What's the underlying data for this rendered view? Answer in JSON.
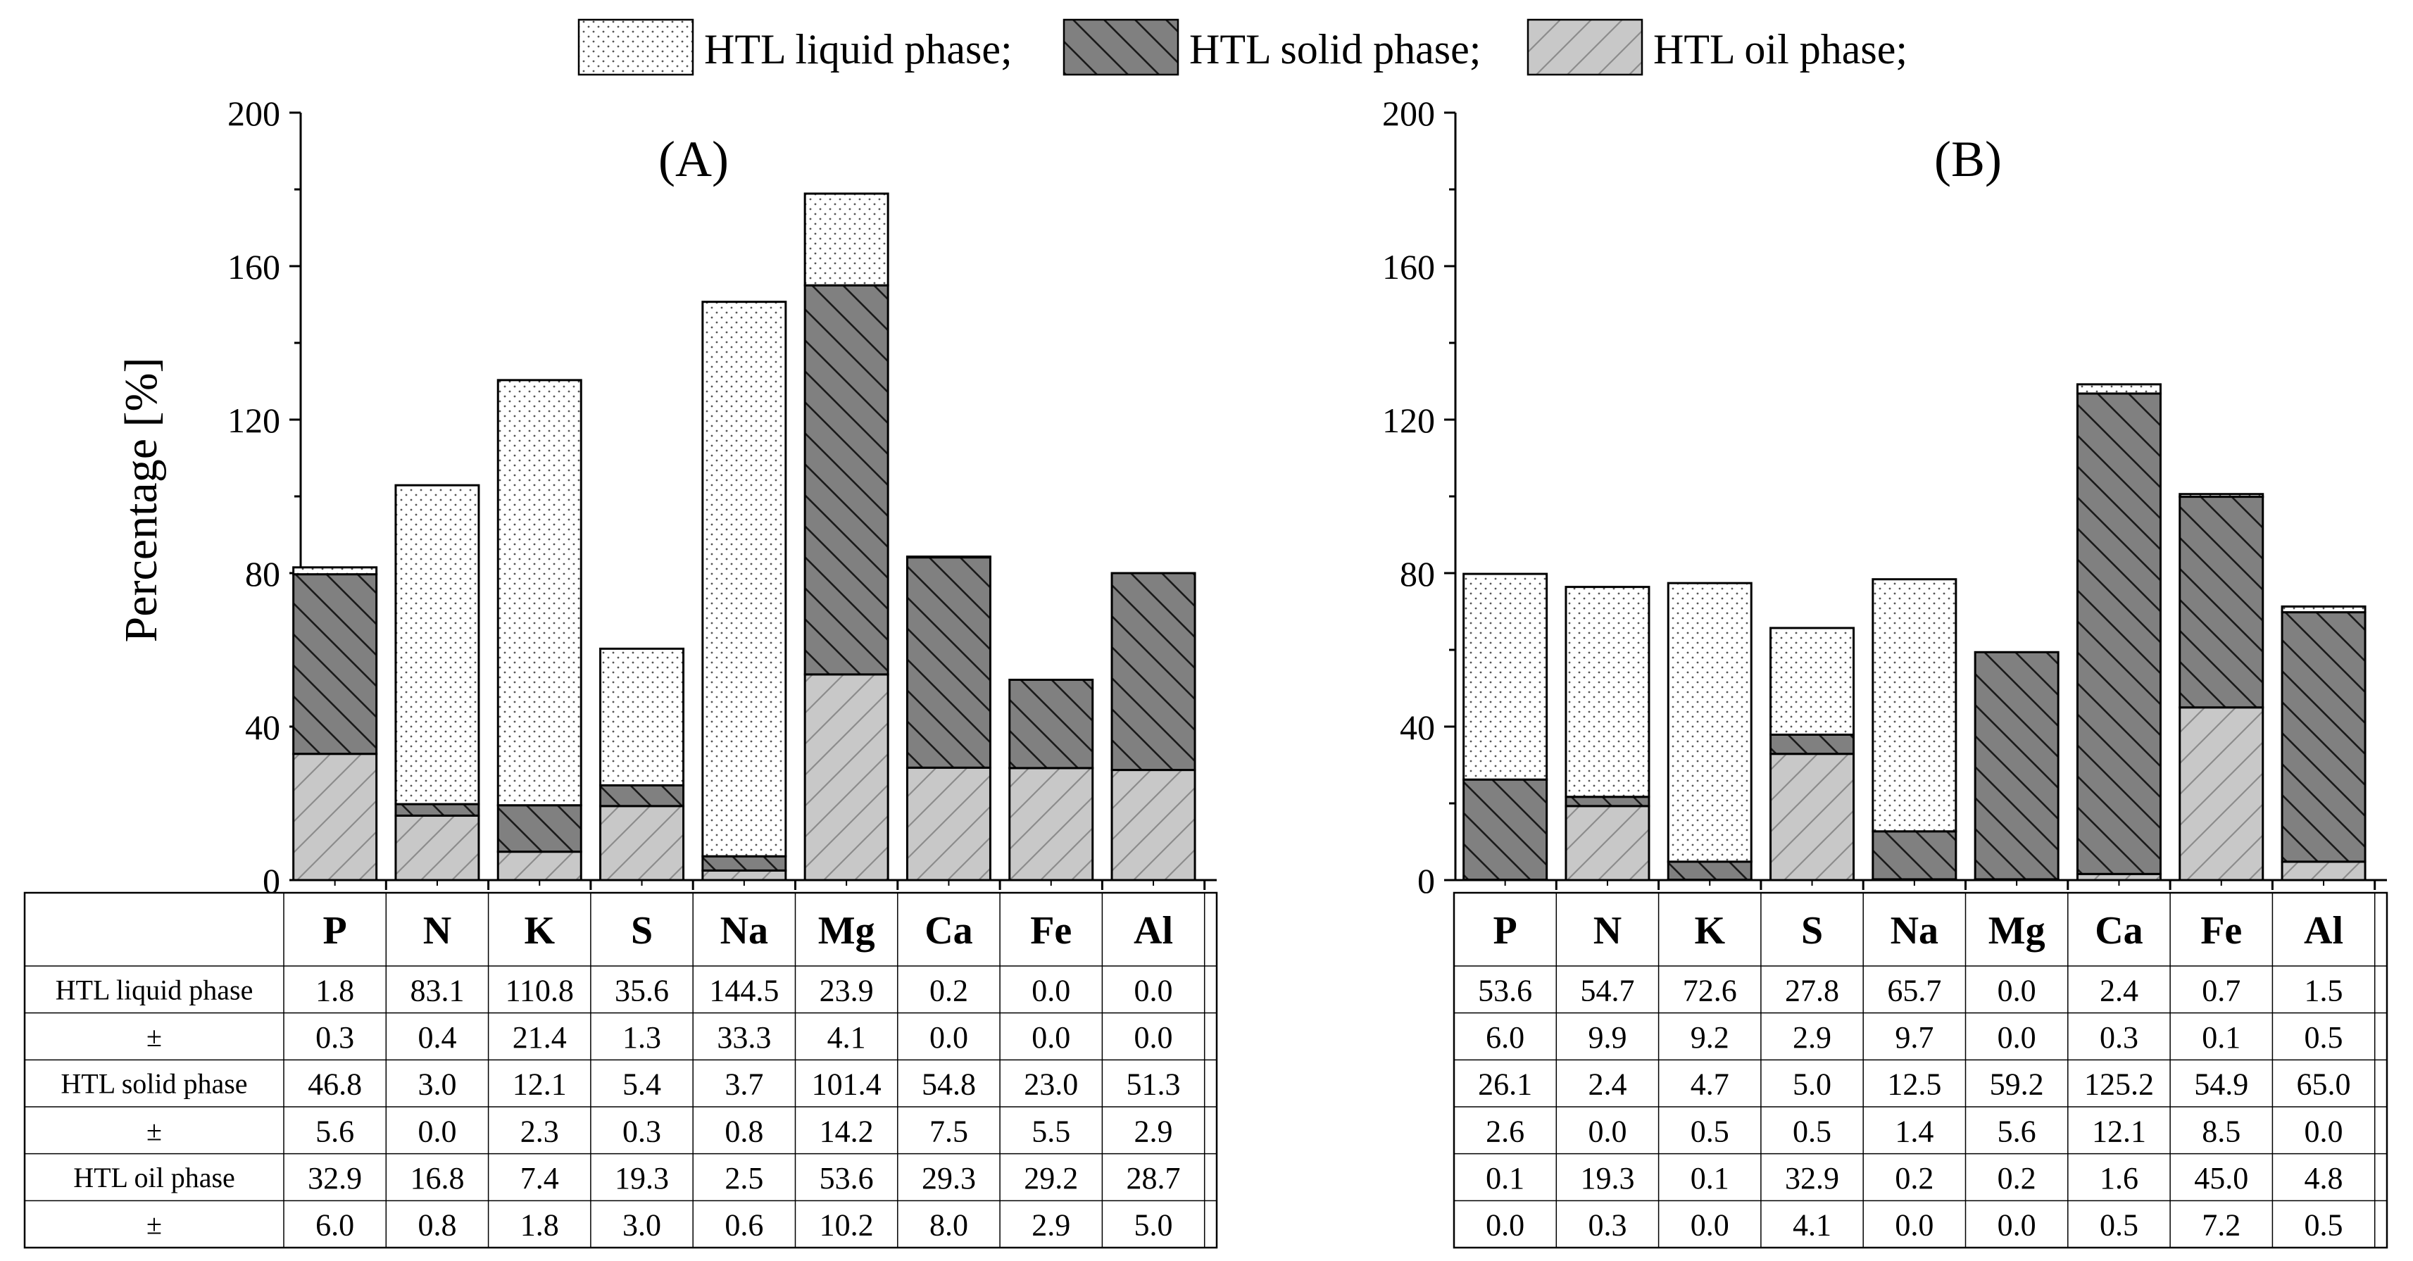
{
  "legend": [
    {
      "key": "liquid",
      "label": "HTL liquid phase;"
    },
    {
      "key": "solid",
      "label": "HTL solid phase;"
    },
    {
      "key": "oil",
      "label": "HTL oil phase;"
    }
  ],
  "colors": {
    "liquid": "#ffffff",
    "solid": "#808080",
    "oil": "#c8c8c8",
    "stroke": "#000000"
  },
  "table_row_labels": [
    "HTL liquid phase",
    "±",
    "HTL solid  phase",
    "±",
    "HTL oil phase",
    "±"
  ],
  "chart_data": [
    {
      "type": "bar",
      "stacked": true,
      "title": "(A)",
      "ylabel": "Percentage [%]",
      "ylim": [
        0,
        200
      ],
      "yticks": [
        "0",
        "40",
        "80",
        "120",
        "160",
        "200"
      ],
      "categories": [
        "P",
        "N",
        "K",
        "S",
        "Na",
        "Mg",
        "Ca",
        "Fe",
        "Al"
      ],
      "series": [
        {
          "name": "HTL oil phase",
          "key": "oil",
          "values": [
            32.9,
            16.8,
            7.4,
            19.3,
            2.5,
            53.6,
            29.3,
            29.2,
            28.7
          ],
          "values_text": [
            "32.9",
            "16.8",
            "7.4",
            "19.3",
            "2.5",
            "53.6",
            "29.3",
            "29.2",
            "28.7"
          ],
          "errors_text": [
            "6.0",
            "0.8",
            "1.8",
            "3.0",
            "0.6",
            "10.2",
            "8.0",
            "2.9",
            "5.0"
          ]
        },
        {
          "name": "HTL solid phase",
          "key": "solid",
          "values": [
            46.8,
            3.0,
            12.1,
            5.4,
            3.7,
            101.4,
            54.8,
            23.0,
            51.3
          ],
          "values_text": [
            "46.8",
            "3.0",
            "12.1",
            "5.4",
            "3.7",
            "101.4",
            "54.8",
            "23.0",
            "51.3"
          ],
          "errors_text": [
            "5.6",
            "0.0",
            "2.3",
            "0.3",
            "0.8",
            "14.2",
            "7.5",
            "5.5",
            "2.9"
          ]
        },
        {
          "name": "HTL liquid phase",
          "key": "liquid",
          "values": [
            1.8,
            83.1,
            110.8,
            35.6,
            144.5,
            23.9,
            0.2,
            0.0,
            0.0
          ],
          "values_text": [
            "1.8",
            "83.1",
            "110.8",
            "35.6",
            "144.5",
            "23.9",
            "0.2",
            "0.0",
            "0.0"
          ],
          "errors_text": [
            "0.3",
            "0.4",
            "21.4",
            "1.3",
            "33.3",
            "4.1",
            "0.0",
            "0.0",
            "0.0"
          ]
        }
      ]
    },
    {
      "type": "bar",
      "stacked": true,
      "title": "(B)",
      "ylabel": "",
      "ylim": [
        0,
        200
      ],
      "yticks": [
        "0",
        "40",
        "80",
        "120",
        "160",
        "200"
      ],
      "categories": [
        "P",
        "N",
        "K",
        "S",
        "Na",
        "Mg",
        "Ca",
        "Fe",
        "Al"
      ],
      "series": [
        {
          "name": "HTL oil phase",
          "key": "oil",
          "values": [
            0.1,
            19.3,
            0.1,
            32.9,
            0.2,
            0.2,
            1.6,
            45.0,
            4.8
          ],
          "values_text": [
            "0.1",
            "19.3",
            "0.1",
            "32.9",
            "0.2",
            "0.2",
            "1.6",
            "45.0",
            "4.8"
          ],
          "errors_text": [
            "0.0",
            "0.3",
            "0.0",
            "4.1",
            "0.0",
            "0.0",
            "0.5",
            "7.2",
            "0.5"
          ]
        },
        {
          "name": "HTL solid phase",
          "key": "solid",
          "values": [
            26.1,
            2.4,
            4.7,
            5.0,
            12.5,
            59.2,
            125.2,
            54.9,
            65.0
          ],
          "values_text": [
            "26.1",
            "2.4",
            "4.7",
            "5.0",
            "12.5",
            "59.2",
            "125.2",
            "54.9",
            "65.0"
          ],
          "errors_text": [
            "2.6",
            "0.0",
            "0.5",
            "0.5",
            "1.4",
            "5.6",
            "12.1",
            "8.5",
            "0.0"
          ]
        },
        {
          "name": "HTL liquid phase",
          "key": "liquid",
          "values": [
            53.6,
            54.7,
            72.6,
            27.8,
            65.7,
            0.0,
            2.4,
            0.7,
            1.5
          ],
          "values_text": [
            "53.6",
            "54.7",
            "72.6",
            "27.8",
            "65.7",
            "0.0",
            "2.4",
            "0.7",
            "1.5"
          ],
          "errors_text": [
            "6.0",
            "9.9",
            "9.2",
            "2.9",
            "9.7",
            "0.0",
            "0.3",
            "0.1",
            "0.5"
          ]
        }
      ]
    }
  ]
}
